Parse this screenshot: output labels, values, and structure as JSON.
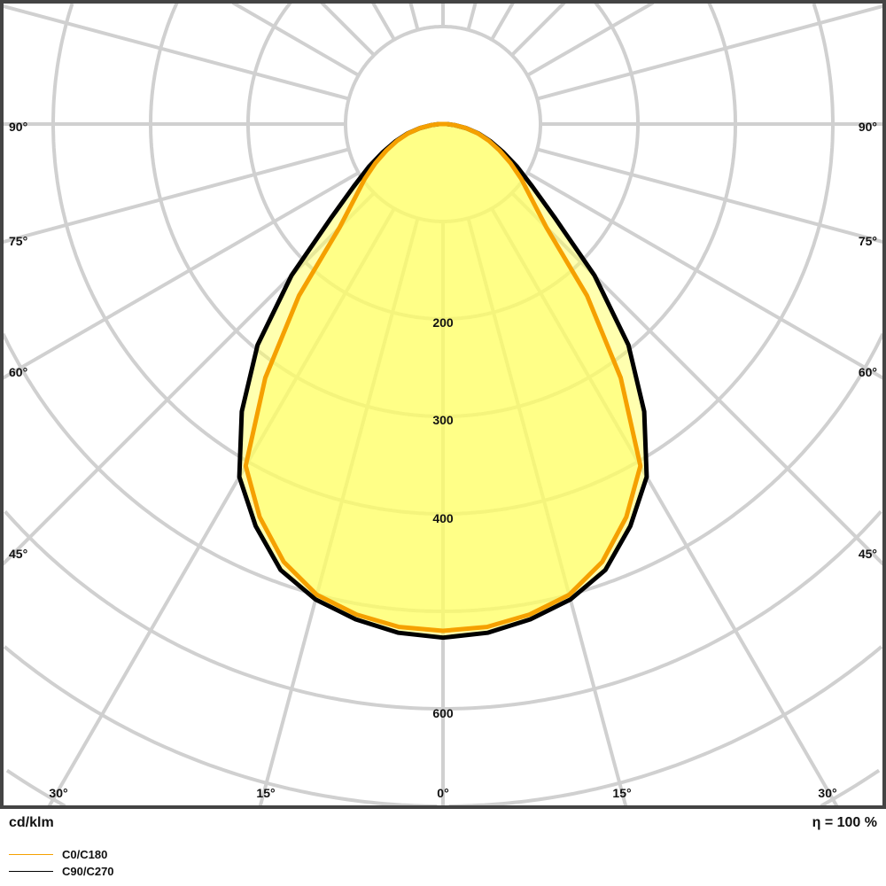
{
  "chart_data": {
    "type": "polar",
    "unit_label": "cd/klm",
    "efficiency_label": "η = 100 %",
    "angle_ticks": [
      "0°",
      "15°",
      "30°",
      "45°",
      "60°",
      "75°",
      "90°"
    ],
    "radial_tick_labels": [
      "200",
      "300",
      "400",
      "600"
    ],
    "radial_range": [
      0,
      900
    ],
    "grid": true,
    "legend_placement": "bottom-left",
    "angles_deg": [
      0,
      5,
      10,
      15,
      20,
      25,
      30,
      35,
      40,
      45,
      50,
      55,
      60,
      65,
      70,
      75,
      80,
      85,
      90
    ],
    "series": [
      {
        "name": "C0/C180",
        "color": "#f5a000",
        "values": [
          520,
          518,
          511,
          500,
          478,
          445,
          405,
          318,
          230,
          150,
          118,
          98,
          80,
          64,
          50,
          37,
          24,
          12,
          4
        ]
      },
      {
        "name": "C90/C270",
        "color": "#000000",
        "values": [
          527,
          524,
          516,
          505,
          487,
          455,
          418,
          360,
          296,
          220,
          150,
          112,
          88,
          68,
          52,
          38,
          24,
          12,
          4
        ]
      }
    ],
    "fill_color": "#ffff60",
    "grid_color": "#d0d0d0"
  }
}
